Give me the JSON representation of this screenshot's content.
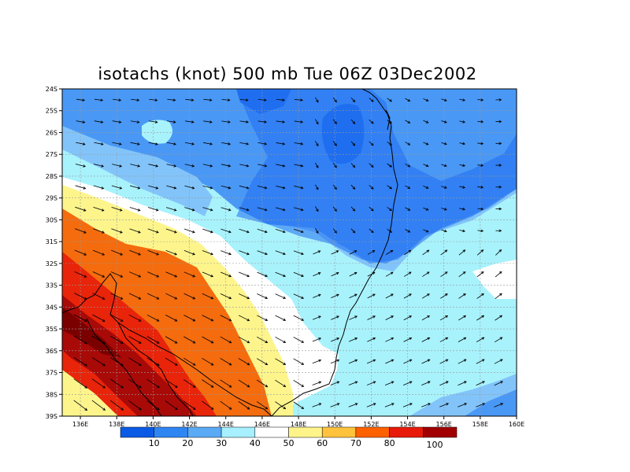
{
  "title": "isotachs (knot) 500 mb Tue 06Z 03Dec2002",
  "map": {
    "lat_ticks": [
      "24S",
      "25S",
      "26S",
      "27S",
      "28S",
      "29S",
      "30S",
      "31S",
      "32S",
      "33S",
      "34S",
      "35S",
      "36S",
      "37S",
      "38S",
      "39S"
    ],
    "lon_ticks": [
      "136E",
      "138E",
      "140E",
      "142E",
      "144E",
      "146E",
      "148E",
      "150E",
      "152E",
      "154E",
      "156E",
      "158E",
      "160E"
    ],
    "lon_range": [
      135,
      160
    ],
    "lat_range": [
      -39,
      -24
    ],
    "grid": "dashed"
  },
  "colorbar": {
    "labels": [
      "10",
      "20",
      "30",
      "40",
      "50",
      "60",
      "70",
      "80",
      "100"
    ],
    "colors": [
      "#0a5ae6",
      "#2f86f2",
      "#5aaaf6",
      "#a6f0ff",
      "#ffffff",
      "#fff48a",
      "#ffc23c",
      "#ff6000",
      "#e81a0a",
      "#a00000"
    ]
  },
  "colors": {
    "c10_20": "#1f6ef0",
    "c20_30": "#4a98f5",
    "c30_40": "#82c4fa",
    "c40_50": "#a8f2fc",
    "c50_60": "#ffffff",
    "c60_70": "#fdf58c",
    "c70_80": "#f46c0e",
    "c80_90": "#e8240a",
    "c90_100": "#a80a08",
    "c_top": "#7a0000"
  }
}
